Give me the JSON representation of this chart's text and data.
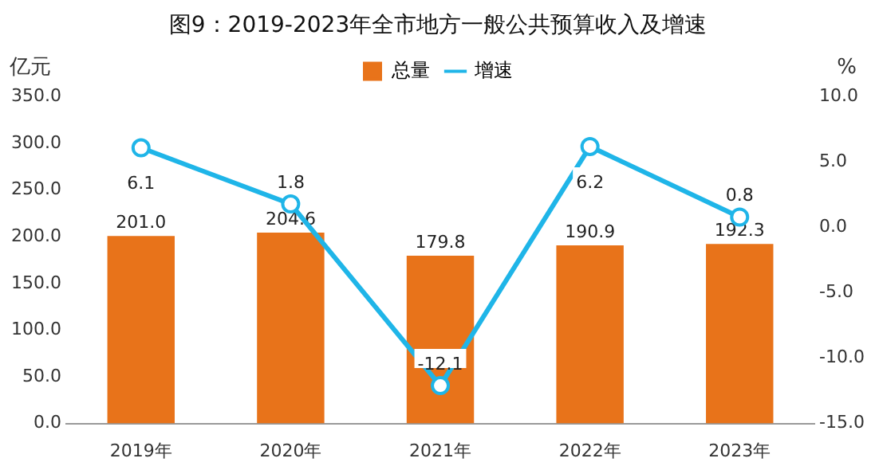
{
  "chart_data": {
    "type": "bar",
    "title": "图9：2019-2023年全市地方一般公共预算收入及增速",
    "ylabel": "亿元",
    "y2label": "%",
    "categories": [
      "2019年",
      "2020年",
      "2021年",
      "2022年",
      "2023年"
    ],
    "series": [
      {
        "name": "总量",
        "color": "#e8731a",
        "values": [
          201.0,
          204.6,
          179.8,
          190.9,
          192.3
        ]
      },
      {
        "name": "增速",
        "type": "line",
        "axis": "y2",
        "color": "#1fb5e8",
        "marker": "circle",
        "values": [
          6.1,
          1.8,
          -12.1,
          6.2,
          0.8
        ],
        "value_labels": [
          "6.1",
          "1.8",
          "-12.1",
          "6.2",
          "0.8"
        ]
      }
    ],
    "value_labels": [
      "201.0",
      "204.6",
      "179.8",
      "190.9",
      "192.3"
    ],
    "ylim": [
      0,
      350
    ],
    "yticks": [
      {
        "value": 0,
        "label": "0.0"
      },
      {
        "value": 50,
        "label": "50.0"
      },
      {
        "value": 100,
        "label": "100.0"
      },
      {
        "value": 150,
        "label": "150.0"
      },
      {
        "value": 200,
        "label": "200.0"
      },
      {
        "value": 250,
        "label": "250.0"
      },
      {
        "value": 300,
        "label": "300.0"
      },
      {
        "value": 350,
        "label": "350.0"
      }
    ],
    "y2lim": [
      -15,
      10
    ],
    "y2ticks": [
      {
        "value": -15,
        "label": "-15.0"
      },
      {
        "value": -10,
        "label": "-10.0"
      },
      {
        "value": -5,
        "label": "-5.0"
      },
      {
        "value": 0,
        "label": "0.0"
      },
      {
        "value": 5,
        "label": "5.0"
      },
      {
        "value": 10,
        "label": "10.0"
      }
    ],
    "legend": "top",
    "grid": false
  }
}
